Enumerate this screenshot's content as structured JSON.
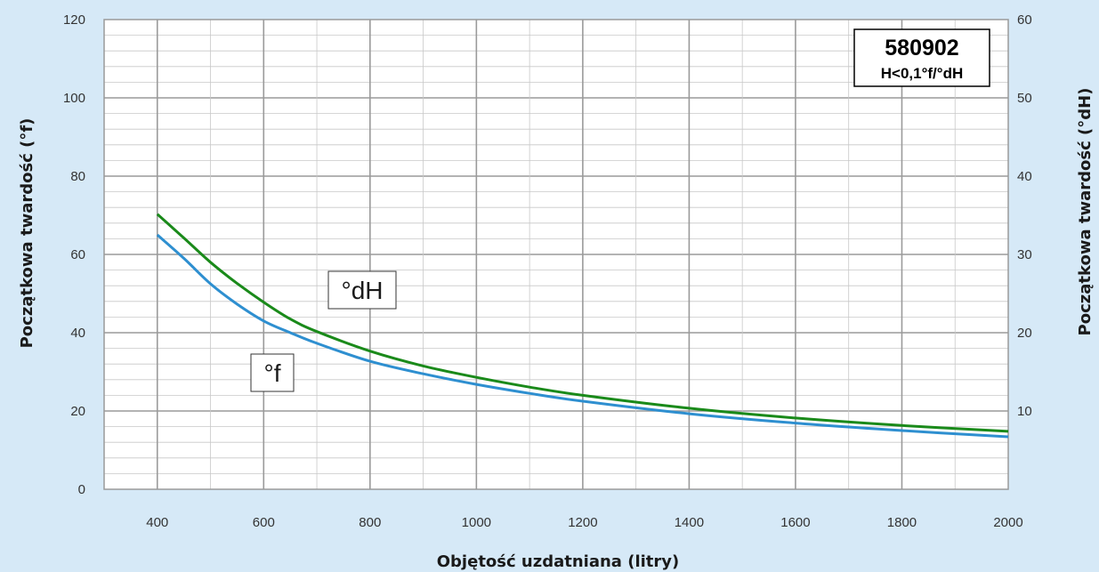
{
  "chart_data": {
    "type": "line",
    "xlabel": "Objętość uzdatniana (litry)",
    "ylabel_left": "Początkowa twardość (°f)",
    "ylabel_right": "Początkowa twardość (°dH)",
    "xlim": [
      300,
      2000
    ],
    "ylim_left": [
      0,
      120
    ],
    "ylim_right": [
      0,
      60
    ],
    "x_ticks": [
      400,
      600,
      800,
      1000,
      1200,
      1400,
      1600,
      1800,
      2000
    ],
    "y_ticks_left": [
      0,
      20,
      40,
      60,
      80,
      100,
      120
    ],
    "y_ticks_right": [
      10,
      20,
      30,
      40,
      50,
      60
    ],
    "x_minor_step": 100,
    "y_minor_step": 4,
    "grid": true,
    "annotation": {
      "code": "580902",
      "condition": "H<0,1°f/°dH"
    },
    "series": [
      {
        "name": "°dH",
        "color": "#1a8a1a",
        "x": [
          400,
          450,
          500,
          550,
          600,
          650,
          700,
          800,
          900,
          1000,
          1100,
          1200,
          1400,
          1600,
          1800,
          2000
        ],
        "y": [
          70.3,
          64.2,
          58.0,
          52.6,
          47.8,
          43.5,
          40.3,
          35.3,
          31.5,
          28.6,
          26.1,
          24.0,
          20.7,
          18.2,
          16.3,
          14.8
        ]
      },
      {
        "name": "°f",
        "color": "#2e8fd0",
        "x": [
          400,
          450,
          500,
          550,
          600,
          650,
          700,
          800,
          900,
          1000,
          1100,
          1200,
          1400,
          1600,
          1800,
          2000
        ],
        "y": [
          65.0,
          59.0,
          52.5,
          47.3,
          43.0,
          40.0,
          37.3,
          32.7,
          29.5,
          26.8,
          24.5,
          22.5,
          19.3,
          16.9,
          15.0,
          13.4
        ]
      }
    ]
  }
}
